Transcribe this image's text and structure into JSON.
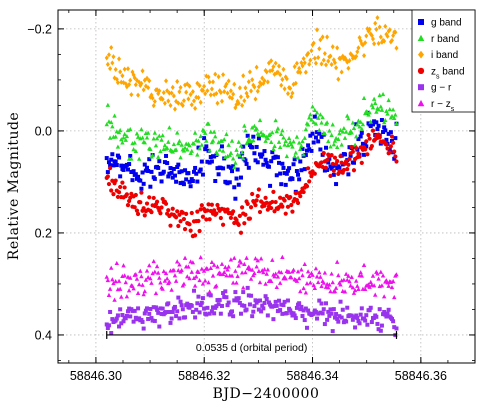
{
  "chart_data": {
    "type": "scatter",
    "xlabel": "BJD−2400000",
    "ylabel": "Relative Magnitude",
    "xlim": [
      58846.293,
      58846.37
    ],
    "ylim": [
      0.455,
      -0.237
    ],
    "y_inverted": true,
    "x_ticks": [
      58846.3,
      58846.32,
      58846.34,
      58846.36
    ],
    "x_tick_labels": [
      "58846.30",
      "58846.32",
      "58846.34",
      "58846.36"
    ],
    "y_ticks": [
      -0.2,
      0.0,
      0.2,
      0.4
    ],
    "y_tick_labels": [
      "−0.2",
      "0.0",
      "0.2",
      "0.4"
    ],
    "grid": true,
    "legend_position": "top-right",
    "annotation": {
      "text": "0.0535 d (orbital period)",
      "x_start": 58846.302,
      "x_end": 58846.3555,
      "y": 0.4
    },
    "series": [
      {
        "name": "g band",
        "label_main": "g band",
        "label_sub": "",
        "marker": "square",
        "color": "#0000ee",
        "size": 4,
        "x_range": [
          58846.302,
          58846.3555
        ],
        "keypoints": [
          [
            58846.302,
            0.05
          ],
          [
            58846.304,
            0.06
          ],
          [
            58846.306,
            0.08
          ],
          [
            58846.308,
            0.09
          ],
          [
            58846.31,
            0.07
          ],
          [
            58846.312,
            0.08
          ],
          [
            58846.314,
            0.08
          ],
          [
            58846.316,
            0.09
          ],
          [
            58846.318,
            0.08
          ],
          [
            58846.32,
            0.05
          ],
          [
            58846.322,
            0.06
          ],
          [
            58846.324,
            0.07
          ],
          [
            58846.326,
            0.1
          ],
          [
            58846.328,
            0.05
          ],
          [
            58846.33,
            0.04
          ],
          [
            58846.332,
            0.06
          ],
          [
            58846.334,
            0.07
          ],
          [
            58846.336,
            0.1
          ],
          [
            58846.338,
            0.07
          ],
          [
            58846.34,
            0.0
          ],
          [
            58846.342,
            0.03
          ],
          [
            58846.344,
            0.07
          ],
          [
            58846.346,
            0.06
          ],
          [
            58846.348,
            0.03
          ],
          [
            58846.35,
            0.0
          ],
          [
            58846.352,
            0.0
          ],
          [
            58846.354,
            0.02
          ],
          [
            58846.3555,
            0.03
          ]
        ],
        "scatter": 0.035
      },
      {
        "name": "r band",
        "label_main": "r band",
        "label_sub": "",
        "marker": "triangle",
        "color": "#22dd22",
        "size": 4,
        "x_range": [
          58846.302,
          58846.3555
        ],
        "keypoints": [
          [
            58846.302,
            -0.01
          ],
          [
            58846.304,
            0.01
          ],
          [
            58846.306,
            0.02
          ],
          [
            58846.308,
            0.03
          ],
          [
            58846.31,
            0.02
          ],
          [
            58846.312,
            0.02
          ],
          [
            58846.314,
            0.03
          ],
          [
            58846.316,
            0.03
          ],
          [
            58846.318,
            0.03
          ],
          [
            58846.32,
            0.01
          ],
          [
            58846.322,
            0.02
          ],
          [
            58846.324,
            0.03
          ],
          [
            58846.326,
            0.05
          ],
          [
            58846.328,
            0.02
          ],
          [
            58846.33,
            0.0
          ],
          [
            58846.332,
            0.01
          ],
          [
            58846.334,
            0.02
          ],
          [
            58846.336,
            0.04
          ],
          [
            58846.338,
            0.02
          ],
          [
            58846.34,
            -0.03
          ],
          [
            58846.342,
            -0.01
          ],
          [
            58846.344,
            0.01
          ],
          [
            58846.346,
            0.0
          ],
          [
            58846.348,
            -0.01
          ],
          [
            58846.35,
            -0.03
          ],
          [
            58846.352,
            -0.05
          ],
          [
            58846.354,
            -0.03
          ],
          [
            58846.3555,
            -0.02
          ]
        ],
        "scatter": 0.03
      },
      {
        "name": "i band",
        "label_main": "i band",
        "label_sub": "",
        "marker": "diamond",
        "color": "#ffa500",
        "size": 4,
        "x_range": [
          58846.302,
          58846.3555
        ],
        "keypoints": [
          [
            58846.302,
            -0.14
          ],
          [
            58846.304,
            -0.12
          ],
          [
            58846.306,
            -0.1
          ],
          [
            58846.308,
            -0.09
          ],
          [
            58846.31,
            -0.08
          ],
          [
            58846.312,
            -0.07
          ],
          [
            58846.314,
            -0.07
          ],
          [
            58846.316,
            -0.06
          ],
          [
            58846.318,
            -0.07
          ],
          [
            58846.32,
            -0.09
          ],
          [
            58846.322,
            -0.09
          ],
          [
            58846.324,
            -0.08
          ],
          [
            58846.326,
            -0.06
          ],
          [
            58846.328,
            -0.08
          ],
          [
            58846.33,
            -0.1
          ],
          [
            58846.332,
            -0.11
          ],
          [
            58846.334,
            -0.11
          ],
          [
            58846.336,
            -0.09
          ],
          [
            58846.338,
            -0.12
          ],
          [
            58846.34,
            -0.17
          ],
          [
            58846.342,
            -0.15
          ],
          [
            58846.344,
            -0.14
          ],
          [
            58846.346,
            -0.14
          ],
          [
            58846.348,
            -0.15
          ],
          [
            58846.35,
            -0.18
          ],
          [
            58846.352,
            -0.2
          ],
          [
            58846.354,
            -0.19
          ],
          [
            58846.3555,
            -0.18
          ]
        ],
        "scatter": 0.03
      },
      {
        "name": "zs band",
        "label_main": "z",
        "label_sub": "s",
        "label_suffix": " band",
        "marker": "circle",
        "color": "#ee0000",
        "size": 4,
        "x_range": [
          58846.302,
          58846.3555
        ],
        "keypoints": [
          [
            58846.302,
            0.09
          ],
          [
            58846.304,
            0.11
          ],
          [
            58846.306,
            0.13
          ],
          [
            58846.308,
            0.14
          ],
          [
            58846.31,
            0.14
          ],
          [
            58846.312,
            0.15
          ],
          [
            58846.314,
            0.16
          ],
          [
            58846.316,
            0.17
          ],
          [
            58846.318,
            0.18
          ],
          [
            58846.32,
            0.16
          ],
          [
            58846.322,
            0.15
          ],
          [
            58846.324,
            0.16
          ],
          [
            58846.326,
            0.18
          ],
          [
            58846.328,
            0.15
          ],
          [
            58846.33,
            0.13
          ],
          [
            58846.332,
            0.14
          ],
          [
            58846.334,
            0.14
          ],
          [
            58846.336,
            0.15
          ],
          [
            58846.338,
            0.13
          ],
          [
            58846.34,
            0.07
          ],
          [
            58846.342,
            0.06
          ],
          [
            58846.344,
            0.07
          ],
          [
            58846.346,
            0.06
          ],
          [
            58846.348,
            0.05
          ],
          [
            58846.35,
            0.03
          ],
          [
            58846.352,
            0.02
          ],
          [
            58846.354,
            0.03
          ],
          [
            58846.3555,
            0.04
          ]
        ],
        "scatter": 0.025
      },
      {
        "name": "g − r",
        "label_main": "g − r",
        "label_sub": "",
        "marker": "square",
        "color": "#9933ee",
        "size": 4,
        "x_range": [
          58846.302,
          58846.3555
        ],
        "keypoints": [
          [
            58846.302,
            0.375
          ],
          [
            58846.31,
            0.36
          ],
          [
            58846.318,
            0.345
          ],
          [
            58846.326,
            0.335
          ],
          [
            58846.334,
            0.345
          ],
          [
            58846.342,
            0.36
          ],
          [
            58846.35,
            0.37
          ],
          [
            58846.3555,
            0.375
          ]
        ],
        "scatter": 0.025
      },
      {
        "name": "r − zs",
        "label_main": "r − z",
        "label_sub": "s",
        "marker": "triangle",
        "color": "#ee11ee",
        "size": 4,
        "x_range": [
          58846.302,
          58846.3555
        ],
        "keypoints": [
          [
            58846.302,
            0.3
          ],
          [
            58846.31,
            0.29
          ],
          [
            58846.318,
            0.28
          ],
          [
            58846.326,
            0.275
          ],
          [
            58846.334,
            0.285
          ],
          [
            58846.342,
            0.295
          ],
          [
            58846.35,
            0.295
          ],
          [
            58846.3555,
            0.3
          ]
        ],
        "scatter": 0.03
      }
    ]
  }
}
